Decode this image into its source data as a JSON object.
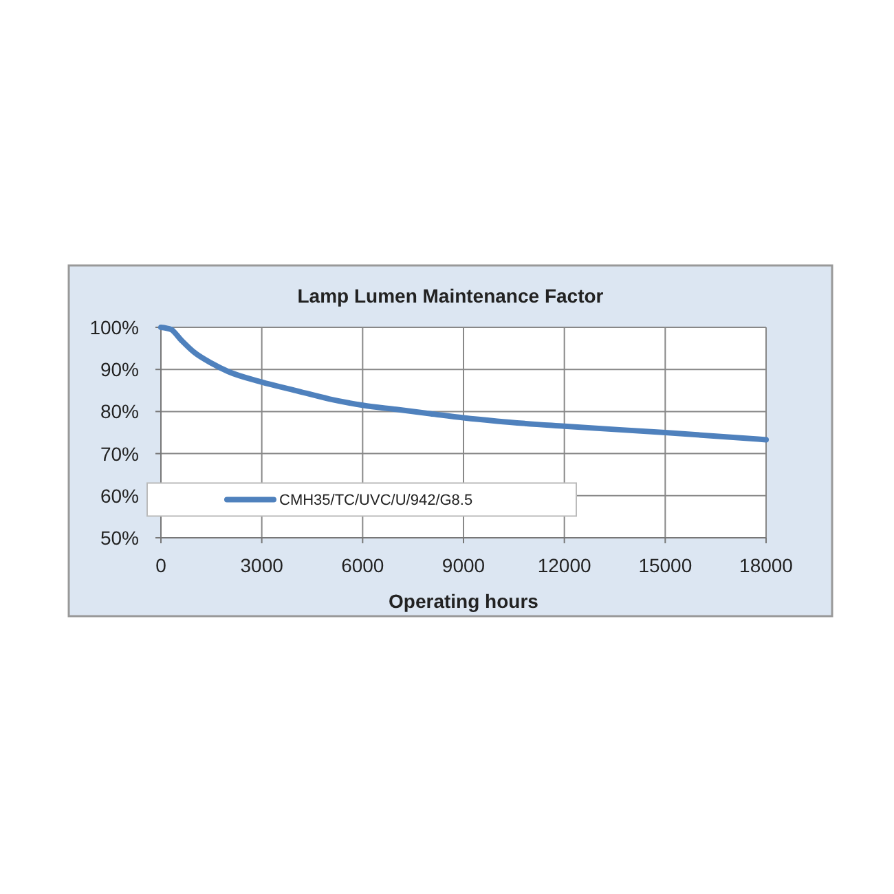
{
  "chart_data": {
    "type": "line",
    "title": "Lamp Lumen Maintenance Factor",
    "xlabel": "Operating hours",
    "x": [
      0,
      300,
      600,
      1000,
      1500,
      2000,
      3000,
      4000,
      5000,
      6000,
      7000,
      8000,
      9000,
      10000,
      12000,
      15000,
      18000
    ],
    "series": [
      {
        "name": "CMH35/TC/UVC/U/942/G8.5",
        "color": "#4f81bd",
        "values": [
          100,
          99.5,
          97,
          94,
          91.5,
          89.5,
          87,
          85,
          83,
          81.5,
          80.5,
          79.5,
          78.5,
          77.7,
          76.5,
          75,
          73.3
        ]
      }
    ],
    "xlim": [
      0,
      18000
    ],
    "xticks": [
      0,
      3000,
      6000,
      9000,
      12000,
      15000,
      18000
    ],
    "ylim": [
      50,
      100
    ],
    "yticks": [
      {
        "value": 50,
        "label": "50%"
      },
      {
        "value": 60,
        "label": "60%"
      },
      {
        "value": 70,
        "label": "70%"
      },
      {
        "value": 80,
        "label": "80%"
      },
      {
        "value": 90,
        "label": "90%"
      },
      {
        "value": 100,
        "label": "100%"
      }
    ],
    "grid": true,
    "legend": "bottom left",
    "marker": "none",
    "line_style": "solid"
  }
}
